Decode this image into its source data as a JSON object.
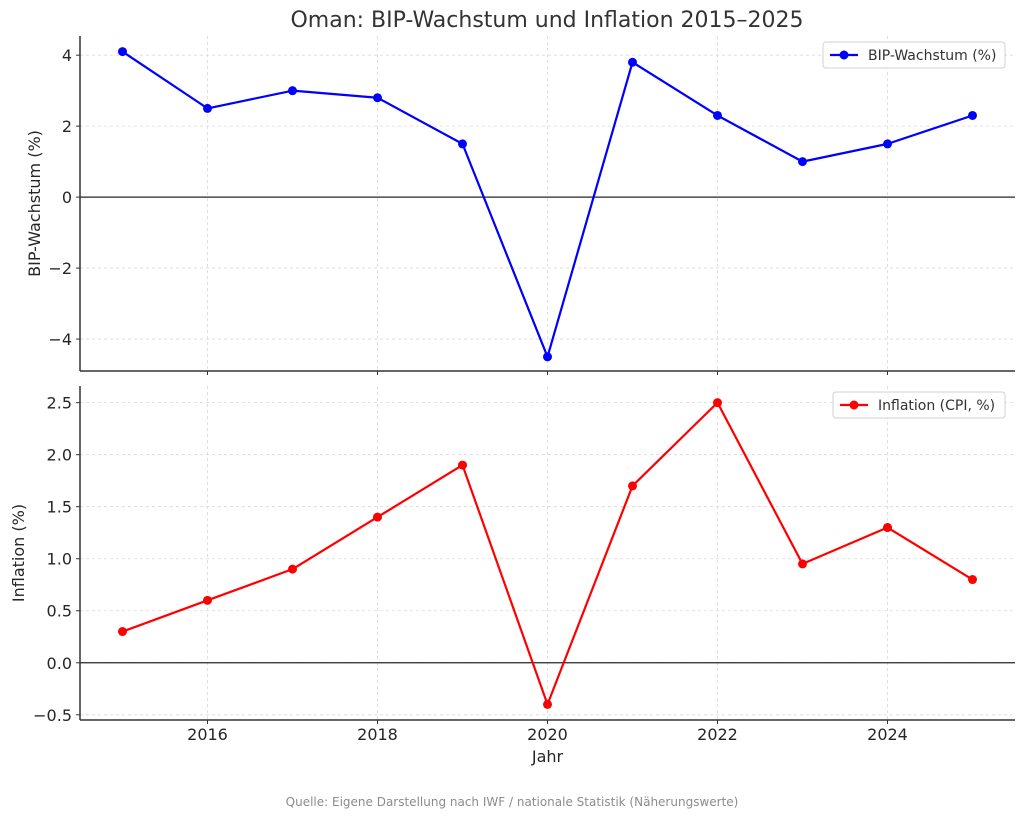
{
  "chart_data": [
    {
      "type": "line",
      "title": "Oman: BIP-Wachstum und Inflation 2015–2025",
      "xlabel": "",
      "ylabel": "BIP-Wachstum (%)",
      "x": [
        2015,
        2016,
        2017,
        2018,
        2019,
        2020,
        2021,
        2022,
        2023,
        2024,
        2025
      ],
      "series": [
        {
          "name": "BIP-Wachstum (%)",
          "color": "#0000ff",
          "values": [
            4.1,
            2.5,
            3.0,
            2.8,
            1.5,
            -4.5,
            3.8,
            2.3,
            1.0,
            1.5,
            2.3
          ]
        }
      ],
      "xlim": [
        2014.5,
        2025.5
      ],
      "ylim": [
        -4.9,
        4.54
      ],
      "yticks": [
        -4,
        -2,
        0,
        2,
        4
      ],
      "ytick_labels": [
        "−4",
        "−2",
        "0",
        "2",
        "4"
      ],
      "xticks": [
        2016,
        2018,
        2020,
        2022,
        2024
      ],
      "grid": true,
      "legend": "top-right",
      "hline": 0
    },
    {
      "type": "line",
      "xlabel": "Jahr",
      "ylabel": "Inflation (%)",
      "x": [
        2015,
        2016,
        2017,
        2018,
        2019,
        2020,
        2021,
        2022,
        2023,
        2024,
        2025
      ],
      "series": [
        {
          "name": "Inflation (CPI, %)",
          "color": "#ff0000",
          "values": [
            0.3,
            0.6,
            0.9,
            1.4,
            1.9,
            -0.4,
            1.7,
            2.5,
            0.95,
            1.3,
            0.8
          ]
        }
      ],
      "xlim": [
        2014.5,
        2025.5
      ],
      "ylim": [
        -0.55,
        2.66
      ],
      "yticks": [
        -0.5,
        0.0,
        0.5,
        1.0,
        1.5,
        2.0,
        2.5
      ],
      "ytick_labels": [
        "−0.5",
        "0.0",
        "0.5",
        "1.0",
        "1.5",
        "2.0",
        "2.5"
      ],
      "xticks": [
        2016,
        2018,
        2020,
        2022,
        2024
      ],
      "xtick_labels": [
        "2016",
        "2018",
        "2020",
        "2022",
        "2024"
      ],
      "grid": true,
      "legend": "top-right",
      "hline": 0
    }
  ],
  "figure": {
    "title": "Oman: BIP-Wachstum und Inflation 2015–2025",
    "source_note": "Quelle: Eigene Darstellung nach IWF / nationale Statistik (Näherungswerte)"
  }
}
